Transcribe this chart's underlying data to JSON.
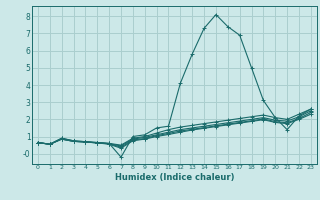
{
  "xlabel": "Humidex (Indice chaleur)",
  "background_color": "#cce8e8",
  "grid_color": "#aacece",
  "line_color": "#1a6b6b",
  "xlim": [
    -0.5,
    23.5
  ],
  "ylim": [
    -0.6,
    8.6
  ],
  "xticks": [
    0,
    1,
    2,
    3,
    4,
    5,
    6,
    7,
    8,
    9,
    10,
    11,
    12,
    13,
    14,
    15,
    16,
    17,
    18,
    19,
    20,
    21,
    22,
    23
  ],
  "yticks": [
    0,
    1,
    2,
    3,
    4,
    5,
    6,
    7,
    8
  ],
  "ytick_labels": [
    "-0",
    "1",
    "2",
    "3",
    "4",
    "5",
    "6",
    "7",
    "8"
  ],
  "line1_x": [
    0,
    1,
    2,
    3,
    4,
    5,
    6,
    7,
    8,
    9,
    10,
    11,
    12,
    13,
    14,
    15,
    16,
    17,
    18,
    19,
    20,
    21,
    22,
    23
  ],
  "line1_y": [
    0.65,
    0.55,
    0.9,
    0.75,
    0.7,
    0.65,
    0.6,
    -0.2,
    1.0,
    1.1,
    1.5,
    1.6,
    4.1,
    5.8,
    7.3,
    8.1,
    7.4,
    6.9,
    5.0,
    3.1,
    2.1,
    1.4,
    2.2,
    2.6
  ],
  "line2_x": [
    0,
    1,
    2,
    3,
    4,
    5,
    6,
    7,
    8,
    9,
    10,
    11,
    12,
    13,
    14,
    15,
    16,
    17,
    18,
    19,
    20,
    21,
    22,
    23
  ],
  "line2_y": [
    0.65,
    0.55,
    0.9,
    0.75,
    0.7,
    0.65,
    0.6,
    0.5,
    0.9,
    1.0,
    1.2,
    1.4,
    1.55,
    1.65,
    1.75,
    1.85,
    1.95,
    2.05,
    2.15,
    2.25,
    2.1,
    2.0,
    2.3,
    2.6
  ],
  "line3_x": [
    0,
    1,
    2,
    3,
    4,
    5,
    6,
    7,
    8,
    9,
    10,
    11,
    12,
    13,
    14,
    15,
    16,
    17,
    18,
    19,
    20,
    21,
    22,
    23
  ],
  "line3_y": [
    0.65,
    0.55,
    0.85,
    0.72,
    0.68,
    0.63,
    0.58,
    0.45,
    0.85,
    0.95,
    1.1,
    1.25,
    1.4,
    1.5,
    1.6,
    1.7,
    1.8,
    1.9,
    2.0,
    2.1,
    1.95,
    1.9,
    2.15,
    2.5
  ],
  "line4_x": [
    0,
    1,
    2,
    3,
    4,
    5,
    6,
    7,
    8,
    9,
    10,
    11,
    12,
    13,
    14,
    15,
    16,
    17,
    18,
    19,
    20,
    21,
    22,
    23
  ],
  "line4_y": [
    0.65,
    0.55,
    0.85,
    0.72,
    0.68,
    0.63,
    0.58,
    0.38,
    0.8,
    0.88,
    1.05,
    1.18,
    1.32,
    1.42,
    1.52,
    1.62,
    1.72,
    1.82,
    1.92,
    2.02,
    1.87,
    1.8,
    2.05,
    2.4
  ],
  "line5_x": [
    0,
    1,
    2,
    3,
    4,
    5,
    6,
    7,
    8,
    9,
    10,
    11,
    12,
    13,
    14,
    15,
    16,
    17,
    18,
    19,
    20,
    21,
    22,
    23
  ],
  "line5_y": [
    0.65,
    0.55,
    0.85,
    0.72,
    0.68,
    0.63,
    0.55,
    0.32,
    0.75,
    0.85,
    1.0,
    1.12,
    1.25,
    1.38,
    1.48,
    1.58,
    1.68,
    1.78,
    1.88,
    1.98,
    1.82,
    1.75,
    2.0,
    2.3
  ]
}
